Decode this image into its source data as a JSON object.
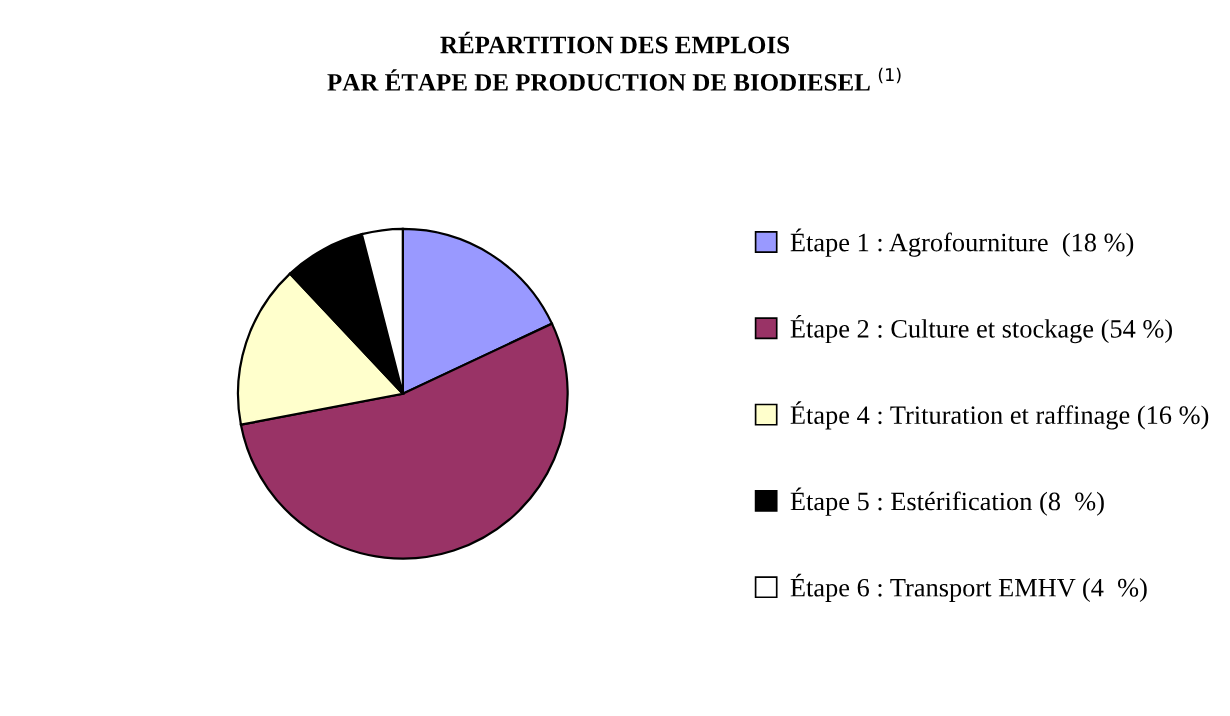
{
  "chart_data": {
    "type": "pie",
    "title": "RÉPARTITION DES EMPLOIS\nPAR ÉTAPE DE PRODUCTION DE BIODIESEL $^{(1)}$",
    "categories": [
      "Étape 1 : Agrofourniture  (18 %)",
      "Étape 2 : Culture et stockage (54 %)",
      "Étape 4 : Trituration et raffinage (16 %)",
      "Étape 5 : Estérification (8  %)",
      "Étape 6 : Transport EMHV (4  %)"
    ],
    "values": [
      18,
      54,
      16,
      8,
      4
    ],
    "colors": [
      "#9999ff",
      "#993366",
      "#ffffcc",
      "#000000",
      "#ffffff"
    ],
    "legend": "right"
  }
}
